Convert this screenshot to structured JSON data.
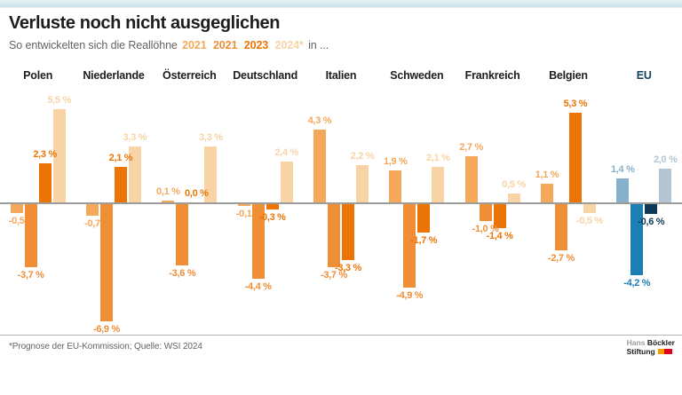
{
  "page": {
    "title": "Verluste noch nicht ausgeglichen",
    "subtitle_prefix": "So entwickelten sich die Reallöhne",
    "subtitle_suffix": "in ...",
    "footnote": "*Prognose der EU-Kommission; Quelle: WSI 2024",
    "logo": {
      "line1_light": "Hans",
      "line1_bold": "Böckler",
      "line2_bold": "Stiftung"
    }
  },
  "legend_years": [
    {
      "label": "2021",
      "color": "#f4a85a"
    },
    {
      "label": "2021",
      "color": "#f08e36"
    },
    {
      "label": "2023",
      "color": "#ec7404"
    },
    {
      "label": "2024*",
      "color": "#f7d3a5"
    }
  ],
  "chart_data": {
    "type": "bar",
    "title": "Verluste noch nicht ausgeglichen",
    "subtitle": "So entwickelten sich die Reallöhne 2021 2021 2023 2024* in ...",
    "unit": "percent",
    "ylim": [
      -7.5,
      6
    ],
    "grid": false,
    "legend_position": "in-subtitle",
    "categories": [
      "Polen",
      "Niederlande",
      "Österreich",
      "Deutschland",
      "Italien",
      "Schweden",
      "Frankreich",
      "Belgien",
      "EU"
    ],
    "series": [
      {
        "name": "2021",
        "values": [
          -0.5,
          -0.7,
          0.1,
          -0.1,
          4.3,
          1.9,
          2.7,
          1.1,
          1.4
        ],
        "labels": [
          "-0,5",
          "-0,7",
          "0,1 %",
          "-0,1",
          "4,3 %",
          "1,9 %",
          "2,7 %",
          "1,1 %",
          "1,4 %"
        ]
      },
      {
        "name": "2021 (2022)",
        "values": [
          -3.7,
          -6.9,
          -3.6,
          -4.4,
          -3.7,
          -4.9,
          -1.0,
          -2.7,
          -4.2
        ],
        "labels": [
          "-3,7 %",
          "-6,9 %",
          "-3,6 %",
          "-4,4 %",
          "-3,7 %",
          "-4,9 %",
          "-1,0 %",
          "-2,7 %",
          "-4,2 %"
        ]
      },
      {
        "name": "2023",
        "values": [
          2.3,
          2.1,
          0.0,
          -0.3,
          -3.3,
          -1.7,
          -1.4,
          5.3,
          -0.6
        ],
        "labels": [
          "2,3 %",
          "2,1 %",
          "0,0 %",
          "-0,3 %",
          "-3,3 %",
          "-1,7 %",
          "-1,4 %",
          "5,3 %",
          "-0,6 %"
        ]
      },
      {
        "name": "2024*",
        "values": [
          5.5,
          3.3,
          3.3,
          2.4,
          2.2,
          2.1,
          0.5,
          -0.5,
          2.0
        ],
        "labels": [
          "5,5 %",
          "3,3 %",
          "3,3 %",
          "2,4 %",
          "2,2 %",
          "2,1 %",
          "0,5 %",
          "-0,5 %",
          "2,0 %"
        ]
      }
    ],
    "palettes": {
      "orange": [
        "#f4a85a",
        "#f08e36",
        "#ec7404",
        "#f7d3a5"
      ],
      "blue": [
        "#86b0cc",
        "#1b7fb4",
        "#0e3a57",
        "#b3c5d3"
      ]
    },
    "category_palette": [
      "orange",
      "orange",
      "orange",
      "orange",
      "orange",
      "orange",
      "orange",
      "orange",
      "blue"
    ],
    "header_colors": {
      "default": "#1d1d1b",
      "eu": "#15425e"
    }
  }
}
